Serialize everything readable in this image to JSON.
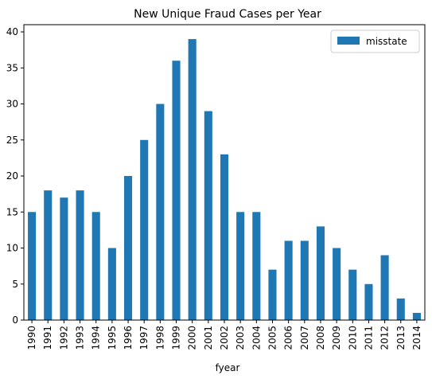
{
  "chart_data": {
    "type": "bar",
    "title": "New Unique Fraud Cases per Year",
    "xlabel": "fyear",
    "ylabel": "",
    "ylim": [
      0,
      41
    ],
    "y_ticks": [
      0,
      5,
      10,
      15,
      20,
      25,
      30,
      35,
      40
    ],
    "categories": [
      "1990",
      "1991",
      "1992",
      "1993",
      "1994",
      "1995",
      "1996",
      "1997",
      "1998",
      "1999",
      "2000",
      "2001",
      "2002",
      "2003",
      "2004",
      "2005",
      "2006",
      "2007",
      "2008",
      "2009",
      "2010",
      "2011",
      "2012",
      "2013",
      "2014"
    ],
    "series": [
      {
        "name": "misstate",
        "color": "#1f77b4",
        "values": [
          15,
          18,
          17,
          18,
          15,
          10,
          20,
          25,
          30,
          36,
          39,
          29,
          23,
          15,
          15,
          7,
          11,
          11,
          13,
          10,
          7,
          5,
          9,
          3,
          1
        ]
      }
    ],
    "legend_position": "top-right",
    "grid": false
  }
}
